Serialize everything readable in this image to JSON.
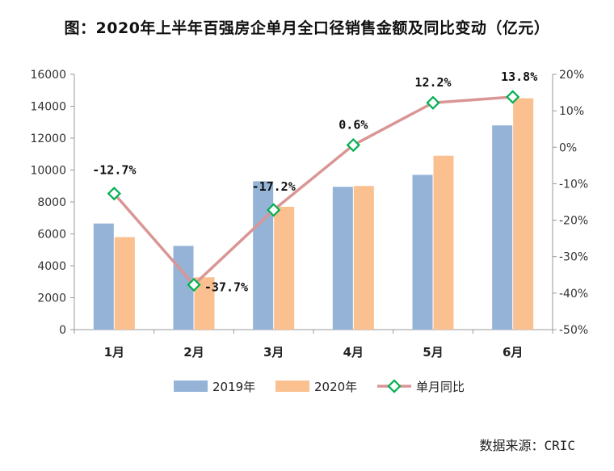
{
  "title": "图：2020年上半年百强房企单月全口径销售金额及同比变动（亿元）",
  "source_label": "数据来源：CRIC",
  "chart_data": {
    "type": "bar",
    "categories": [
      "1月",
      "2月",
      "3月",
      "4月",
      "5月",
      "6月"
    ],
    "series": [
      {
        "name": "2019年",
        "type": "bar",
        "axis": "left",
        "color": "#95B3D7",
        "values": [
          6650,
          5250,
          9300,
          8950,
          9700,
          12800
        ]
      },
      {
        "name": "2020年",
        "type": "bar",
        "axis": "left",
        "color": "#FAC090",
        "values": [
          5800,
          3280,
          7700,
          9000,
          10900,
          14500
        ]
      },
      {
        "name": "单月同比",
        "type": "line",
        "axis": "right",
        "color": "#D99694",
        "marker_color": "#00B050",
        "values": [
          -12.7,
          -37.7,
          -17.2,
          0.6,
          12.2,
          13.8
        ],
        "labels": [
          "-12.7%",
          "-37.7%",
          "-17.2%",
          "0.6%",
          "12.2%",
          "13.8%"
        ]
      }
    ],
    "y_left": {
      "min": 0,
      "max": 16000,
      "ticks": [
        "0",
        "2000",
        "4000",
        "6000",
        "8000",
        "10000",
        "12000",
        "14000",
        "16000"
      ]
    },
    "y_right": {
      "min": -50,
      "max": 20,
      "ticks": [
        "-50%",
        "-40%",
        "-30%",
        "-20%",
        "-10%",
        "0%",
        "10%",
        "20%"
      ]
    },
    "legend_position": "bottom",
    "grid": false
  }
}
